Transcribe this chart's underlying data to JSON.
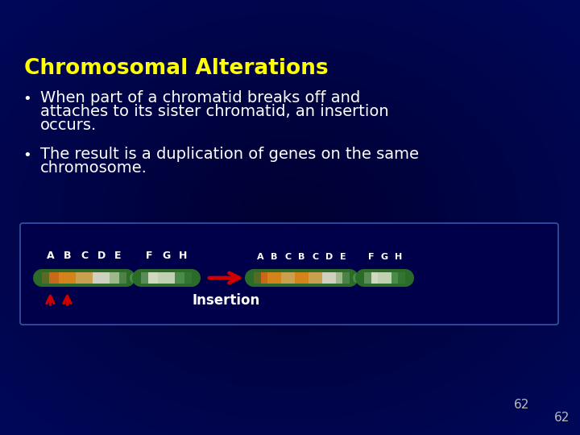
{
  "title": "Chromosomal Alterations",
  "title_color": "#FFFF00",
  "title_fontsize": 19,
  "bg_color": "#00006A",
  "bullet1_line1": "When part of a chromatid breaks off and",
  "bullet1_line2": "attaches to its sister chromatid, an insertion",
  "bullet1_line3": "occurs.",
  "bullet2_line1": "The result is a duplication of genes on the same",
  "bullet2_line2": "chromosome.",
  "text_color": "#FFFFFF",
  "bullet_color": "#FFFFFF",
  "text_fontsize": 14,
  "insertion_label": "Insertion",
  "insertion_label_color": "#FFFFFF",
  "insertion_label_fontsize": 12,
  "chrom1_labels": [
    "A",
    "B",
    "C",
    "D",
    "E",
    "F",
    "G",
    "H"
  ],
  "chrom2_labels": [
    "A",
    "B",
    "C",
    "B",
    "C",
    "D",
    "E",
    "F",
    "G",
    "H"
  ],
  "label_color": "#FFFFFF",
  "label_fontsize": 9,
  "page_number": "62",
  "page_number_color": "#BBBBBB",
  "diagram_box_bg": "#00004A",
  "diagram_box_edge": "#3355AA",
  "arm1_segs_colors": [
    "#C8691A",
    "#D4821A",
    "#C8A050",
    "#D0D0C0",
    "#9DB88A"
  ],
  "arm2_segs_colors": [
    "#D0D8C0",
    "#C0D0B0",
    "#4A8B4A"
  ],
  "arm3_segs_colors": [
    "#C8691A",
    "#D4821A",
    "#C8A050",
    "#D4821A",
    "#C8A050",
    "#D0D0C0",
    "#9DB88A"
  ],
  "arm4_segs_colors": [
    "#D0D8C0",
    "#C0D0B0",
    "#4A8B4A"
  ],
  "green_outer": "#2A6B2A",
  "centromere_color": "#4A8B4A",
  "red_arrow_color": "#CC0000"
}
